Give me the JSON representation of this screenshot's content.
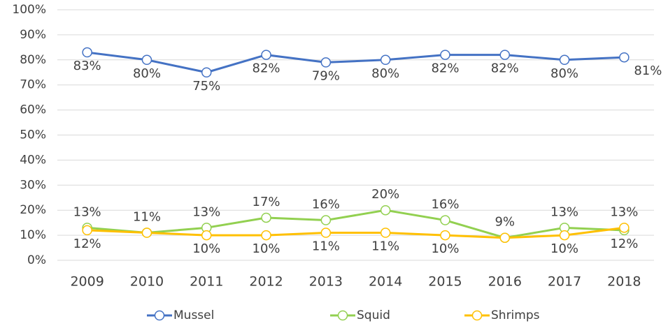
{
  "chart_data": {
    "type": "line",
    "categories": [
      "2009",
      "2010",
      "2011",
      "2012",
      "2013",
      "2014",
      "2015",
      "2016",
      "2017",
      "2018"
    ],
    "series": [
      {
        "name": "Mussel",
        "color": "#4472c4",
        "values": [
          83,
          80,
          75,
          82,
          79,
          80,
          82,
          82,
          80,
          81
        ],
        "value_labels": [
          "83%",
          "80%",
          "75%",
          "82%",
          "79%",
          "80%",
          "82%",
          "82%",
          "80%",
          "81%"
        ]
      },
      {
        "name": "Squid",
        "color": "#92d050",
        "values": [
          13,
          11,
          13,
          17,
          16,
          20,
          16,
          9,
          13,
          12
        ],
        "value_labels": [
          "13%",
          "11%",
          "13%",
          "17%",
          "16%",
          "20%",
          "16%",
          "9%",
          "13%",
          "12%"
        ]
      },
      {
        "name": "Shrimps",
        "color": "#ffc000",
        "values": [
          12,
          11,
          10,
          10,
          11,
          11,
          10,
          9,
          10,
          13
        ],
        "value_labels": [
          "12%",
          null,
          "10%",
          "10%",
          "11%",
          "11%",
          "10%",
          null,
          "10%",
          "13%"
        ]
      }
    ],
    "ylim": [
      0,
      100
    ],
    "yticks": [
      {
        "value": 0,
        "label": "0%"
      },
      {
        "value": 10,
        "label": "10%"
      },
      {
        "value": 20,
        "label": "20%"
      },
      {
        "value": 30,
        "label": "30%"
      },
      {
        "value": 40,
        "label": "40%"
      },
      {
        "value": 50,
        "label": "50%"
      },
      {
        "value": 60,
        "label": "60%"
      },
      {
        "value": 70,
        "label": "70%"
      },
      {
        "value": 80,
        "label": "80%"
      },
      {
        "value": 90,
        "label": "90%"
      },
      {
        "value": 100,
        "label": "100%"
      }
    ],
    "grid": true,
    "legend": "bottom"
  }
}
